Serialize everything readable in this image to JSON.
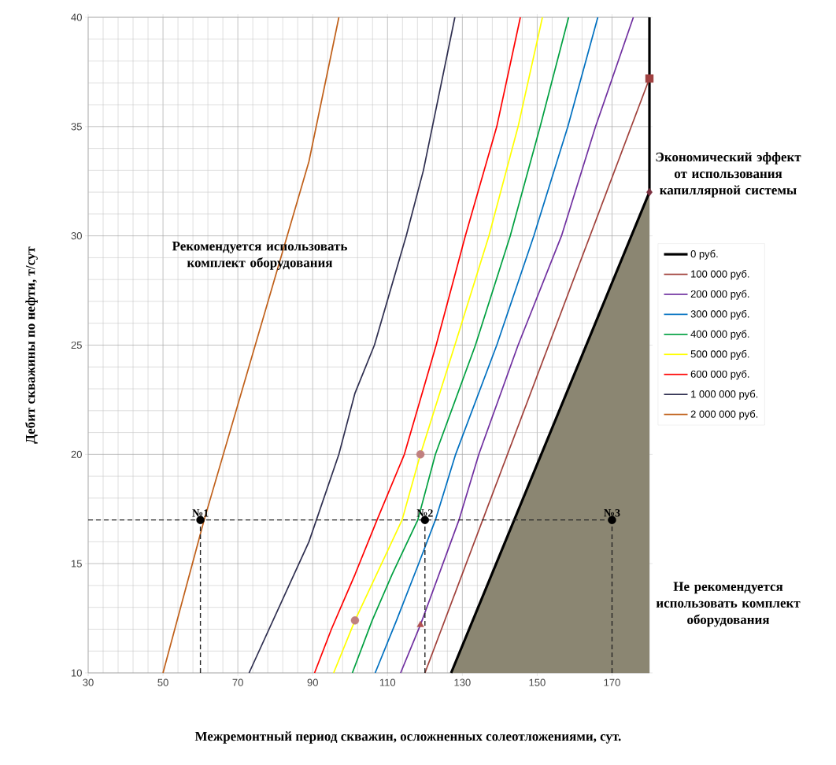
{
  "chart_data": {
    "type": "line",
    "xlabel": "Межремонтный период скважин, осложненных солеотложениями, сут.",
    "ylabel": "Дебит скважины по нефти, т/сут",
    "xlim": [
      30,
      180
    ],
    "ylim": [
      10,
      40
    ],
    "xticks": [
      30,
      50,
      70,
      90,
      110,
      130,
      150,
      170
    ],
    "yticks": [
      10,
      15,
      20,
      25,
      30,
      35,
      40
    ],
    "grid": true,
    "legend": "right",
    "annotations": [
      "Рекомендуется использовать комплект оборудования",
      "Экономический эффект от использования капиллярной системы",
      "Не рекомендуется использовать комплект оборудования",
      {
        "text": "№1",
        "x": 60,
        "y": 17
      },
      {
        "text": "№2",
        "x": 120,
        "y": 17
      },
      {
        "text": "№3",
        "x": 170,
        "y": 17
      }
    ],
    "series": [
      {
        "type": "area",
        "color": "#8b8672",
        "x": [
          127,
          180
        ],
        "values": [
          10,
          32
        ]
      },
      {
        "name": "0 руб.",
        "color": "#000000",
        "x": [
          127,
          180,
          180
        ],
        "values": [
          10,
          32,
          40
        ]
      },
      {
        "name": "100 000 руб.",
        "color": "#a0403a",
        "x": [
          120,
          180
        ],
        "values": [
          10,
          37.2
        ]
      },
      {
        "name": "200 000 руб.",
        "color": "#7030a0",
        "x": [
          113.5,
          118.8,
          129.1,
          134.4,
          144.9,
          156.5,
          165.6,
          175.7
        ],
        "values": [
          10,
          12.2,
          17,
          20,
          25,
          30,
          35,
          40
        ]
      },
      {
        "name": "300 000 руб.",
        "color": "#0070c0",
        "x": [
          106.7,
          112.4,
          118.1,
          122.8,
          128.2,
          139.2,
          149.1,
          158.2,
          166.2
        ],
        "values": [
          10,
          12.4,
          14.9,
          17,
          20,
          25,
          30,
          35,
          40
        ]
      },
      {
        "name": "400 000 руб.",
        "color": "#00a040",
        "x": [
          100.6,
          105.9,
          111.2,
          118.1,
          122.8,
          133.5,
          142.8,
          150.8,
          158.4
        ],
        "values": [
          10,
          12.4,
          14.5,
          17,
          20,
          25,
          30,
          35,
          40
        ]
      },
      {
        "name": "500 000 руб.",
        "color": "#ffff00",
        "x": [
          95.6,
          101.3,
          113.9,
          118.8,
          128,
          137.1,
          144.9,
          151.4
        ],
        "values": [
          10,
          12.4,
          17,
          20,
          25,
          30,
          35,
          40
        ]
      },
      {
        "name": "600 000 руб.",
        "color": "#ff0000",
        "x": [
          90.5,
          95,
          101.3,
          107.2,
          114.5,
          123,
          130.8,
          139.2,
          145.5
        ],
        "values": [
          10,
          12,
          14.5,
          17,
          20,
          25,
          30,
          35,
          40
        ]
      },
      {
        "name": "1 000 000 руб.",
        "color": "#2f2f50",
        "x": [
          73,
          89,
          97,
          101.3,
          106.5,
          115,
          119.6,
          128
        ],
        "values": [
          10,
          16,
          20,
          22.8,
          25,
          30,
          33,
          40
        ]
      },
      {
        "name": "2 000 000 руб.",
        "color": "#c0601a",
        "x": [
          50,
          61,
          89,
          97
        ],
        "values": [
          10,
          17,
          33.4,
          40
        ]
      },
      {
        "type": "line",
        "color": "#262626",
        "line_style": "dashed",
        "x": [
          30,
          170
        ],
        "values": [
          17,
          17
        ]
      },
      {
        "type": "line",
        "color": "#262626",
        "line_style": "dashed",
        "x": [
          60,
          60
        ],
        "values": [
          10,
          17
        ]
      },
      {
        "type": "line",
        "color": "#262626",
        "line_style": "dashed",
        "x": [
          120,
          120
        ],
        "values": [
          10,
          17
        ]
      },
      {
        "type": "line",
        "color": "#262626",
        "line_style": "dashed",
        "x": [
          170,
          170
        ],
        "values": [
          10,
          17
        ]
      },
      {
        "type": "scatter",
        "color": "#7b3040",
        "marker": "diamond",
        "x": [
          180
        ],
        "values": [
          32
        ]
      },
      {
        "type": "scatter",
        "color": "#a04040",
        "marker": "square",
        "x": [
          180
        ],
        "values": [
          37.2
        ]
      },
      {
        "type": "scatter",
        "color": "#b05050",
        "marker": "triangle",
        "x": [
          118.8
        ],
        "values": [
          12.2
        ]
      },
      {
        "type": "scatter",
        "color": "#c08080",
        "marker": "circle",
        "x": [
          101.3,
          118.8
        ],
        "values": [
          12.4,
          20
        ]
      },
      {
        "type": "scatter",
        "color": "#000000",
        "marker": "circle",
        "x": [
          60,
          120,
          170
        ],
        "values": [
          17,
          17,
          17
        ]
      }
    ]
  }
}
